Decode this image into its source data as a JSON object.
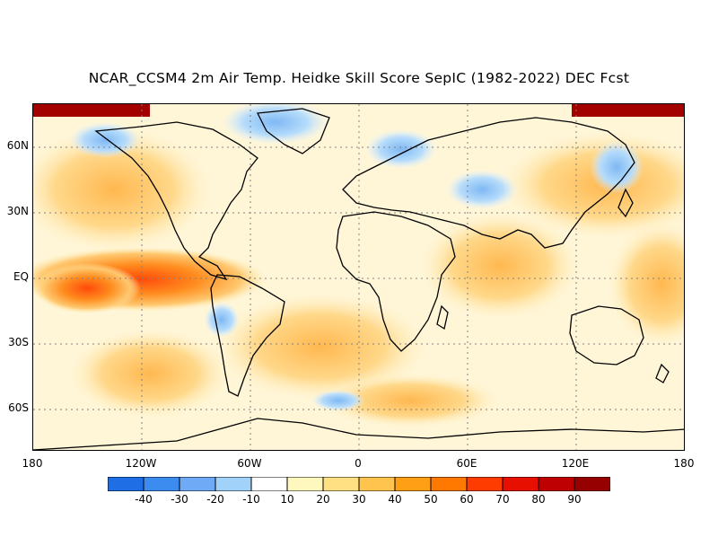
{
  "title": "NCAR_CCSM4 2m Air Temp. Heidke Skill Score SepIC (1982-2022) DEC Fcst",
  "lat_labels": [
    "60N",
    "30N",
    "EQ",
    "30S",
    "60S"
  ],
  "lon_labels": [
    "180",
    "120W",
    "60W",
    "0",
    "60E",
    "120E",
    "180"
  ],
  "colorbar": {
    "colors": [
      "#1e6ee6",
      "#3c8cf0",
      "#6eaaf5",
      "#a0d2fa",
      "#ffffff",
      "#fff8be",
      "#ffe082",
      "#ffc44e",
      "#ffa014",
      "#ff7800",
      "#ff3c00",
      "#e60f00",
      "#be0000",
      "#960000"
    ],
    "tick_labels": [
      "-40",
      "-30",
      "-20",
      "-10",
      "10",
      "20",
      "30",
      "40",
      "50",
      "60",
      "70",
      "80",
      "90"
    ]
  }
}
